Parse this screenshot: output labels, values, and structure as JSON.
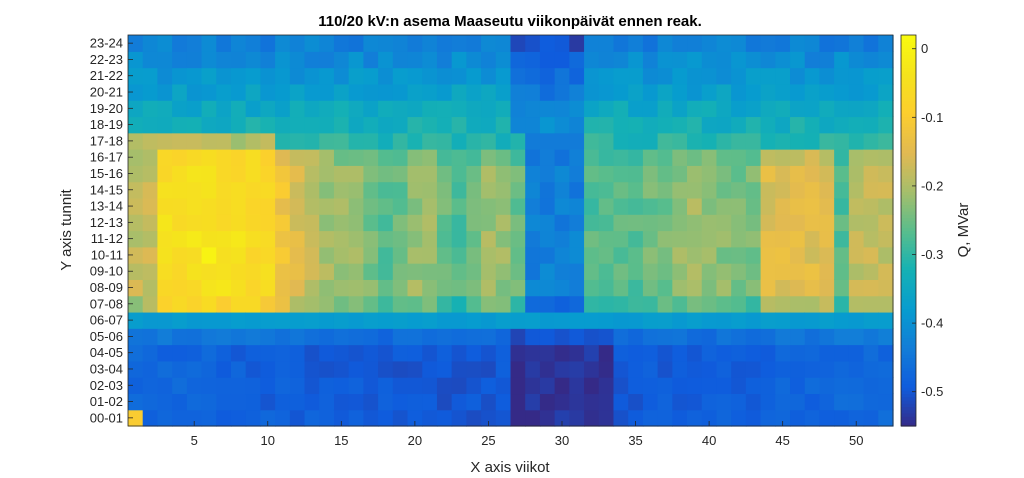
{
  "chart_data": {
    "type": "heatmap",
    "title": "110/20 kV:n asema Maaseutu viikonpäivät ennen reak.",
    "xlabel": "X axis viikot",
    "ylabel": "Y axis tunnit",
    "x_ticks": [
      5,
      10,
      15,
      20,
      25,
      30,
      35,
      40,
      45,
      50
    ],
    "x_range": [
      1,
      52
    ],
    "y_categories": [
      "00-01",
      "01-02",
      "02-03",
      "03-04",
      "04-05",
      "05-06",
      "06-07",
      "07-08",
      "08-09",
      "09-10",
      "10-11",
      "11-12",
      "12-13",
      "13-14",
      "14-15",
      "15-16",
      "16-17",
      "17-18",
      "18-19",
      "19-20",
      "20-21",
      "21-22",
      "22-23",
      "23-24"
    ],
    "colorbar": {
      "label": "Q, MVar",
      "range": [
        -0.55,
        0.02
      ],
      "ticks": [
        0,
        -0.1,
        -0.2,
        -0.3,
        -0.4,
        -0.5
      ],
      "tick_labels": [
        "0",
        "-0.1",
        "-0.2",
        "-0.3",
        "-0.4",
        "-0.5"
      ],
      "colormap": "parula"
    },
    "approximate_values": {
      "note_hours": "rows 00-06 about -0.45 to -0.52, row 06-07 about -0.38, daytime rows 07-17 about -0.05 (weeks 3-10) to -0.25 (weeks 15-27), weeks 28-31 about -0.45, weeks 44-48 about -0.15, evening rows 17-24 about -0.3 to -0.45",
      "highlights": [
        {
          "week": 6,
          "hour": "10-11",
          "value": 0.0
        },
        {
          "week": 1,
          "hour": "00-01",
          "value": -0.1
        }
      ]
    }
  }
}
